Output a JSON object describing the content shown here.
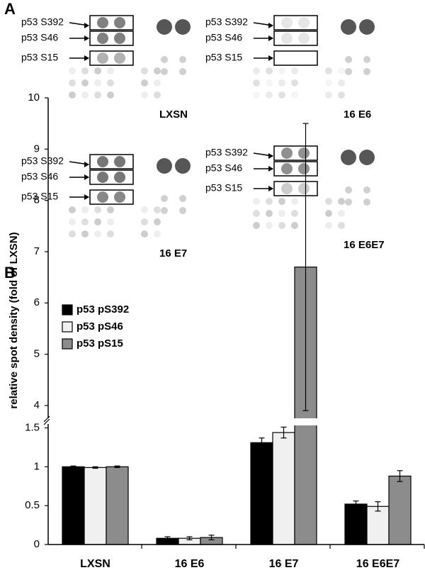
{
  "panel_a": {
    "label": "A",
    "blots": [
      {
        "name": "LXSN",
        "rows": [
          "p53 S392",
          "p53 S46",
          "p53 S15"
        ]
      },
      {
        "name": "16 E6",
        "rows": [
          "p53 S392",
          "p53 S46",
          "p53 S15"
        ]
      },
      {
        "name": "16 E7",
        "rows": [
          "p53 S392",
          "p53 S46",
          "p53 S15"
        ]
      },
      {
        "name": "16 E6E7",
        "rows": [
          "p53 S392",
          "p53 S46",
          "p53 S15"
        ]
      }
    ]
  },
  "chart_data": {
    "type": "bar",
    "panel_label": "B",
    "y_label": "relative spot density (fold of LXSN)",
    "categories": [
      "LXSN",
      "16 E6",
      "16 E7",
      "16 E6E7"
    ],
    "series": [
      {
        "name": "p53 pS392",
        "color": "#000000",
        "values": [
          1,
          0.08,
          1.31,
          0.52
        ],
        "errors": [
          0.01,
          0.02,
          0.06,
          0.04
        ]
      },
      {
        "name": "p53 pS46",
        "color": "#f0f0f0",
        "values": [
          0.99,
          0.08,
          1.44,
          0.49
        ],
        "errors": [
          0.01,
          0.02,
          0.07,
          0.06
        ]
      },
      {
        "name": "p53 pS15",
        "color": "#8c8c8c",
        "values": [
          1,
          0.09,
          6.7,
          0.88
        ],
        "errors": [
          0.01,
          0.03,
          2.8,
          0.07
        ]
      }
    ],
    "ylim": [
      0,
      10
    ],
    "ybreak": [
      1.55,
      3.75
    ],
    "yticks": [
      0,
      0.5,
      1,
      1.5,
      4,
      5,
      6,
      7,
      8,
      9,
      10
    ],
    "legend": "upper left"
  }
}
